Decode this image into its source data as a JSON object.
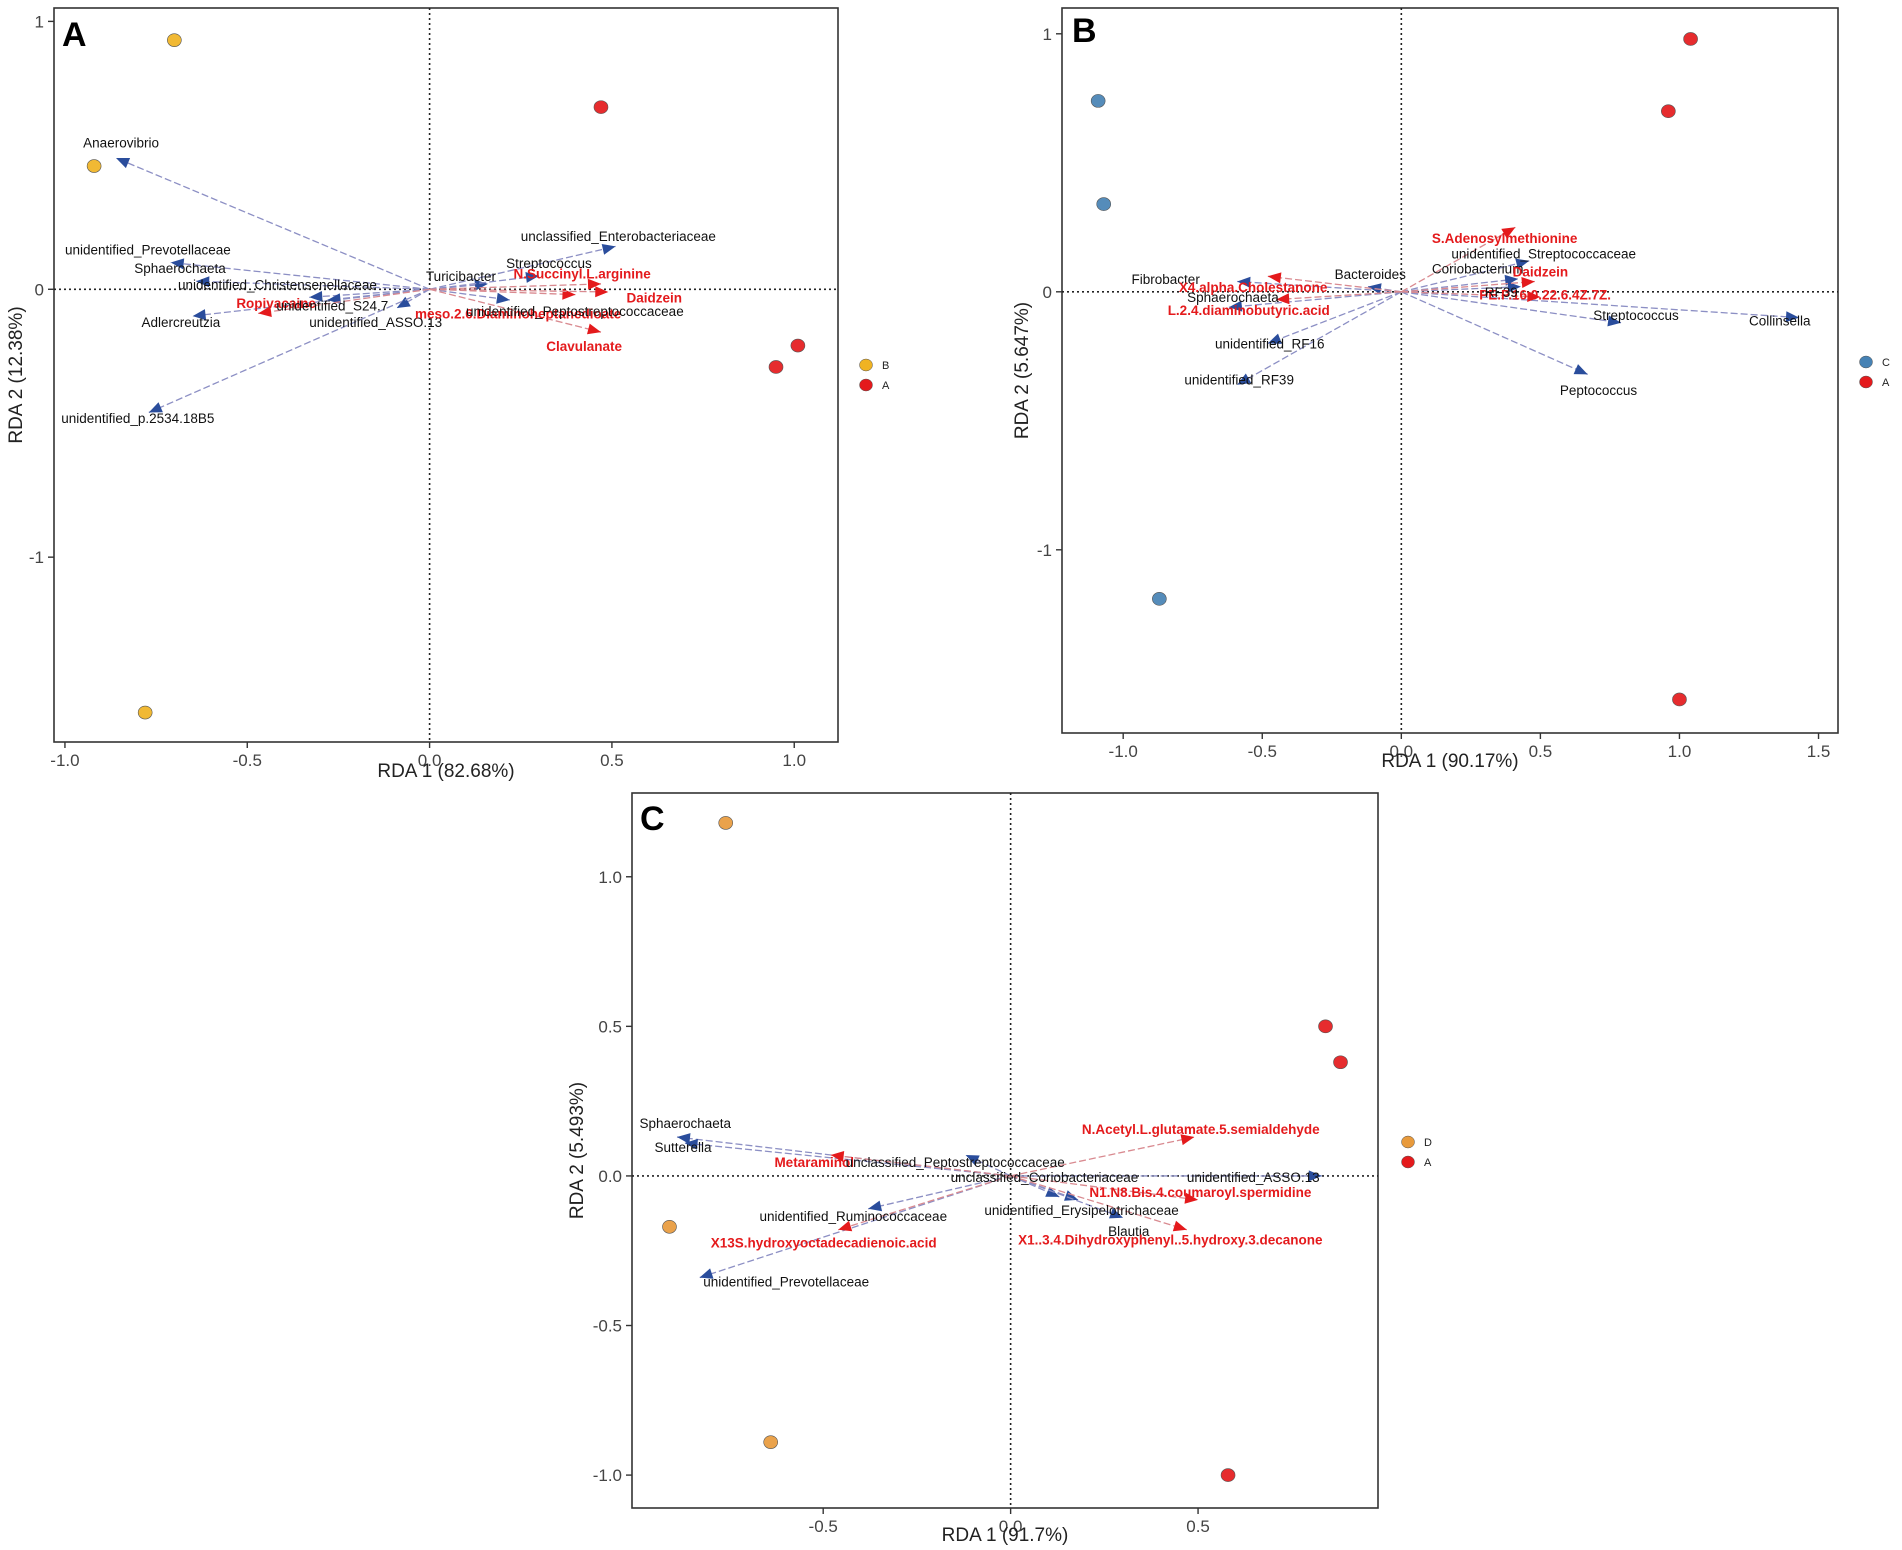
{
  "chart_data": [
    {
      "type": "scatter",
      "panel": "A",
      "xlabel": "RDA 1 (82.68%)",
      "ylabel": "RDA 2 (12.38%)",
      "xlim": [
        -1.03,
        1.12
      ],
      "ylim": [
        -1.69,
        1.05
      ],
      "xticks": [
        -1.0,
        -0.5,
        0.0,
        0.5,
        1.0
      ],
      "xtick_labels": [
        "-1.0",
        "-0.5",
        "0.0",
        "0.5",
        "1.0"
      ],
      "yticks": [
        -1,
        0,
        1
      ],
      "ytick_labels": [
        "-1",
        "0",
        "1"
      ],
      "groups": [
        {
          "name": "B",
          "color": "#f0b323",
          "points": [
            [
              -0.7,
              0.93
            ],
            [
              -0.92,
              0.46
            ],
            [
              -0.78,
              -1.58
            ]
          ]
        },
        {
          "name": "A",
          "color": "#e41a1c",
          "points": [
            [
              0.47,
              0.68
            ],
            [
              1.01,
              -0.21
            ],
            [
              0.95,
              -0.29
            ]
          ]
        }
      ],
      "arrows_blue": [
        {
          "label": "Anaerovibrio",
          "x": -0.86,
          "y": 0.49
        },
        {
          "label": "unidentified_Prevotellaceae",
          "x": -0.71,
          "y": 0.1
        },
        {
          "label": "Sphaerochaeta",
          "x": -0.64,
          "y": 0.03
        },
        {
          "label": "unidentified_Christensenellaceae",
          "x": -0.33,
          "y": -0.03
        },
        {
          "label": "Adlercreutzia",
          "x": -0.65,
          "y": -0.1
        },
        {
          "label": "unidentified_S24.7",
          "x": -0.28,
          "y": -0.04
        },
        {
          "label": "unidentified_ASSO.13",
          "x": -0.09,
          "y": -0.07
        },
        {
          "label": "unidentified_p.2534.18B5",
          "x": -0.77,
          "y": -0.46
        },
        {
          "label": "Turicibacter",
          "x": 0.16,
          "y": 0.02
        },
        {
          "label": "Streptococcus",
          "x": 0.3,
          "y": 0.05
        },
        {
          "label": "unclassified_Enterobacteriaceae",
          "x": 0.51,
          "y": 0.16
        },
        {
          "label": "unidentified_Peptostreptococcaceae",
          "x": 0.22,
          "y": -0.04
        }
      ],
      "arrows_red": [
        {
          "label": "Ropivacaine",
          "x": -0.47,
          "y": -0.09
        },
        {
          "label": "N.Succinyl.L.arginine",
          "x": 0.47,
          "y": 0.02
        },
        {
          "label": "Daidzein",
          "x": 0.4,
          "y": -0.02
        },
        {
          "label": "meso.2.6.Diaminoheptanedioate",
          "x": 0.49,
          "y": -0.01
        },
        {
          "label": "Clavulanate",
          "x": 0.47,
          "y": -0.16
        }
      ],
      "labels": [
        {
          "text": "Anaerovibrio",
          "x": -0.95,
          "y": 0.53,
          "color": "blue"
        },
        {
          "text": "unidentified_Prevotellaceae",
          "x": -1.0,
          "y": 0.13,
          "color": "blue"
        },
        {
          "text": "Sphaerochaeta",
          "x": -0.81,
          "y": 0.06,
          "color": "blue"
        },
        {
          "text": "unidentified_Christensenellaceae",
          "x": -0.69,
          "y": -0.0,
          "color": "blue"
        },
        {
          "text": "Ropivacaine",
          "x": -0.53,
          "y": -0.07,
          "color": "red"
        },
        {
          "text": "unidentified_S24.7",
          "x": -0.42,
          "y": -0.08,
          "color": "blue"
        },
        {
          "text": "Adlercreutzia",
          "x": -0.79,
          "y": -0.14,
          "color": "blue"
        },
        {
          "text": "unidentified_ASSO.13",
          "x": -0.33,
          "y": -0.14,
          "color": "blue"
        },
        {
          "text": "unidentified_p.2534.18B5",
          "x": -1.01,
          "y": -0.5,
          "color": "blue"
        },
        {
          "text": "Turicibacter",
          "x": -0.01,
          "y": 0.03,
          "color": "blue"
        },
        {
          "text": "Streptococcus",
          "x": 0.21,
          "y": 0.08,
          "color": "blue"
        },
        {
          "text": "unclassified_Enterobacteriaceae",
          "x": 0.25,
          "y": 0.18,
          "color": "blue"
        },
        {
          "text": "N.Succinyl.L.arginine",
          "x": 0.23,
          "y": 0.04,
          "color": "red"
        },
        {
          "text": "Daidzein",
          "x": 0.54,
          "y": -0.05,
          "color": "red"
        },
        {
          "text": "meso.2.6.Diaminoheptanedioate",
          "x": -0.04,
          "y": -0.11,
          "color": "red"
        },
        {
          "text": "unidentified_Peptostreptococcaceae",
          "x": 0.1,
          "y": -0.1,
          "color": "blue"
        },
        {
          "text": "Clavulanate",
          "x": 0.32,
          "y": -0.23,
          "color": "red"
        }
      ]
    },
    {
      "type": "scatter",
      "panel": "B",
      "xlabel": "RDA 1 (90.17%)",
      "ylabel": "RDA 2 (5.647%)",
      "xlim": [
        -1.22,
        1.57
      ],
      "ylim": [
        -1.71,
        1.1
      ],
      "xticks": [
        -1.0,
        -0.5,
        0.0,
        0.5,
        1.0,
        1.5
      ],
      "xtick_labels": [
        "-1.0",
        "-0.5",
        "0.0",
        "0.5",
        "1.0",
        "1.5"
      ],
      "yticks": [
        -1,
        0,
        1
      ],
      "ytick_labels": [
        "-1",
        "0",
        "1"
      ],
      "groups": [
        {
          "name": "C",
          "color": "#4682b4",
          "points": [
            [
              -1.09,
              0.74
            ],
            [
              -1.07,
              0.34
            ],
            [
              -0.87,
              -1.19
            ]
          ]
        },
        {
          "name": "A",
          "color": "#e41a1c",
          "points": [
            [
              1.04,
              0.98
            ],
            [
              0.96,
              0.7
            ],
            [
              1.0,
              -1.58
            ]
          ]
        }
      ],
      "arrows_blue": [
        {
          "label": "Fibrobacter",
          "x": -0.59,
          "y": 0.04
        },
        {
          "label": "Sphaerochaeta",
          "x": -0.62,
          "y": -0.06
        },
        {
          "label": "Bacteroides",
          "x": -0.12,
          "y": 0.02
        },
        {
          "label": "unidentified_RF16",
          "x": -0.48,
          "y": -0.2
        },
        {
          "label": "unidentified_RF39",
          "x": -0.59,
          "y": -0.36
        },
        {
          "label": "Coriobacterium",
          "x": 0.42,
          "y": 0.05
        },
        {
          "label": "unidentified_Streptococcaceae",
          "x": 0.46,
          "y": 0.12
        },
        {
          "label": "Streptococcus",
          "x": 0.79,
          "y": -0.12
        },
        {
          "label": "Collinsella",
          "x": 1.43,
          "y": -0.1
        },
        {
          "label": "Peptococcus",
          "x": 0.67,
          "y": -0.32
        },
        {
          "label": "RF39",
          "x": 0.43,
          "y": 0.02
        }
      ],
      "arrows_red": [
        {
          "label": "S.Adenosylmethionine",
          "x": 0.41,
          "y": 0.25
        },
        {
          "label": "X4.alpha.Cholestanone",
          "x": -0.48,
          "y": 0.06
        },
        {
          "label": "L.2.4.diaminobutyric.acid",
          "x": -0.45,
          "y": -0.03
        },
        {
          "label": "Daidzein",
          "x": 0.48,
          "y": 0.04
        },
        {
          "label": "PE.P.16.0.22.6.4Z.7Z.",
          "x": 0.5,
          "y": -0.02
        }
      ],
      "labels": [
        {
          "text": "Fibrobacter",
          "x": -0.97,
          "y": 0.03,
          "color": "blue"
        },
        {
          "text": "X4.alpha.Cholestanone",
          "x": -0.8,
          "y": 0.0,
          "color": "red"
        },
        {
          "text": "Sphaerochaeta",
          "x": -0.77,
          "y": -0.04,
          "color": "blue"
        },
        {
          "text": "L.2.4.diaminobutyric.acid",
          "x": -0.84,
          "y": -0.09,
          "color": "red"
        },
        {
          "text": "Bacteroides",
          "x": -0.24,
          "y": 0.05,
          "color": "blue"
        },
        {
          "text": "unidentified_RF16",
          "x": -0.67,
          "y": -0.22,
          "color": "blue"
        },
        {
          "text": "unidentified_RF39",
          "x": -0.78,
          "y": -0.36,
          "color": "blue"
        },
        {
          "text": "S.Adenosylmethionine",
          "x": 0.11,
          "y": 0.19,
          "color": "red"
        },
        {
          "text": "unidentified_Streptococcaceae",
          "x": 0.18,
          "y": 0.13,
          "color": "blue"
        },
        {
          "text": "Coriobacterium",
          "x": 0.11,
          "y": 0.07,
          "color": "blue"
        },
        {
          "text": "Daidzein",
          "x": 0.4,
          "y": 0.06,
          "color": "red"
        },
        {
          "text": "PE.P.16.0.22.6.4Z.7Z.",
          "x": 0.28,
          "y": -0.03,
          "color": "red"
        },
        {
          "text": "RF39",
          "x": 0.3,
          "y": -0.02,
          "color": "blue"
        },
        {
          "text": "Streptococcus",
          "x": 0.69,
          "y": -0.11,
          "color": "blue"
        },
        {
          "text": "Collinsella",
          "x": 1.25,
          "y": -0.13,
          "color": "blue"
        },
        {
          "text": "Peptococcus",
          "x": 0.57,
          "y": -0.4,
          "color": "blue"
        }
      ]
    },
    {
      "type": "scatter",
      "panel": "C",
      "xlabel": "RDA 1 (91.7%)",
      "ylabel": "RDA 2 (5.493%)",
      "xlim": [
        -1.01,
        0.98
      ],
      "ylim": [
        -1.11,
        1.28
      ],
      "xticks": [
        -0.5,
        0.0,
        0.5
      ],
      "xtick_labels": [
        "-0.5",
        "0.0",
        "0.5"
      ],
      "yticks": [
        -1.0,
        -0.5,
        0.0,
        0.5,
        1.0
      ],
      "ytick_labels": [
        "-1.0",
        "-0.5",
        "0.0",
        "0.5",
        "1.0"
      ],
      "groups": [
        {
          "name": "D",
          "color": "#e89a3c",
          "points": [
            [
              -0.76,
              1.18
            ],
            [
              -0.91,
              -0.17
            ],
            [
              -0.64,
              -0.89
            ]
          ]
        },
        {
          "name": "A",
          "color": "#e41a1c",
          "points": [
            [
              0.84,
              0.5
            ],
            [
              0.88,
              0.38
            ],
            [
              0.58,
              -1.0
            ]
          ]
        }
      ],
      "arrows_blue": [
        {
          "label": "Sphaerochaeta",
          "x": -0.89,
          "y": 0.13
        },
        {
          "label": "Sutterella",
          "x": -0.87,
          "y": 0.11
        },
        {
          "label": "unclassified_Peptostreptococcaceae",
          "x": -0.12,
          "y": 0.07
        },
        {
          "label": "unclassified_Coriobacteriaceae",
          "x": 0.18,
          "y": -0.08
        },
        {
          "label": "unidentified_ASSO.13",
          "x": 0.83,
          "y": 0.0
        },
        {
          "label": "unidentified_Erysipelotrichaceae",
          "x": 0.13,
          "y": -0.07
        },
        {
          "label": "Blautia",
          "x": 0.3,
          "y": -0.14
        },
        {
          "label": "unidentified_Ruminococcaceae",
          "x": -0.38,
          "y": -0.11
        },
        {
          "label": "unidentified_Prevotellaceae",
          "x": -0.83,
          "y": -0.34
        }
      ],
      "arrows_red": [
        {
          "label": "Metaraminol",
          "x": -0.48,
          "y": 0.07
        },
        {
          "label": "N.Acetyl.L.glutamate.5.semialdehyde",
          "x": 0.49,
          "y": 0.13
        },
        {
          "label": "N1.N8.Bis.4.coumaroyl.spermidine",
          "x": 0.5,
          "y": -0.08
        },
        {
          "label": "X13S.hydroxyoctadecadienoic.acid",
          "x": -0.46,
          "y": -0.18
        },
        {
          "label": "X1..3.4.Dihydroxyphenyl..5.hydroxy.3.decanone",
          "x": 0.47,
          "y": -0.18
        }
      ],
      "labels": [
        {
          "text": "Sphaerochaeta",
          "x": -0.99,
          "y": 0.16,
          "color": "blue"
        },
        {
          "text": "Sutterella",
          "x": -0.95,
          "y": 0.08,
          "color": "blue"
        },
        {
          "text": "Metaraminol",
          "x": -0.63,
          "y": 0.03,
          "color": "red"
        },
        {
          "text": "unclassified_Peptostreptococcaceae",
          "x": -0.44,
          "y": 0.03,
          "color": "blue"
        },
        {
          "text": "unclassified_Coriobacteriaceae",
          "x": -0.16,
          "y": -0.02,
          "color": "blue"
        },
        {
          "text": "N.Acetyl.L.glutamate.5.semialdehyde",
          "x": 0.19,
          "y": 0.14,
          "color": "red"
        },
        {
          "text": "unidentified_ASSO.13",
          "x": 0.47,
          "y": -0.02,
          "color": "blue"
        },
        {
          "text": "N1.N8.Bis.4.coumaroyl.spermidine",
          "x": 0.21,
          "y": -0.07,
          "color": "red"
        },
        {
          "text": "unidentified_Erysipelotrichaceae",
          "x": -0.07,
          "y": -0.13,
          "color": "blue"
        },
        {
          "text": "Blautia",
          "x": 0.26,
          "y": -0.2,
          "color": "blue"
        },
        {
          "text": "X1..3.4.Dihydroxyphenyl..5.hydroxy.3.decanone",
          "x": 0.02,
          "y": -0.23,
          "color": "red"
        },
        {
          "text": "unidentified_Ruminococcaceae",
          "x": -0.67,
          "y": -0.15,
          "color": "blue"
        },
        {
          "text": "X13S.hydroxyoctadecadienoic.acid",
          "x": -0.8,
          "y": -0.24,
          "color": "red"
        },
        {
          "text": "unidentified_Prevotellaceae",
          "x": -0.82,
          "y": -0.37,
          "color": "blue"
        }
      ]
    }
  ],
  "colors": {
    "arrow_blue": "#2a4d9c",
    "arrow_red": "#e41a1c",
    "line_blue": "#8c8fc4",
    "line_red": "#d98a90"
  }
}
